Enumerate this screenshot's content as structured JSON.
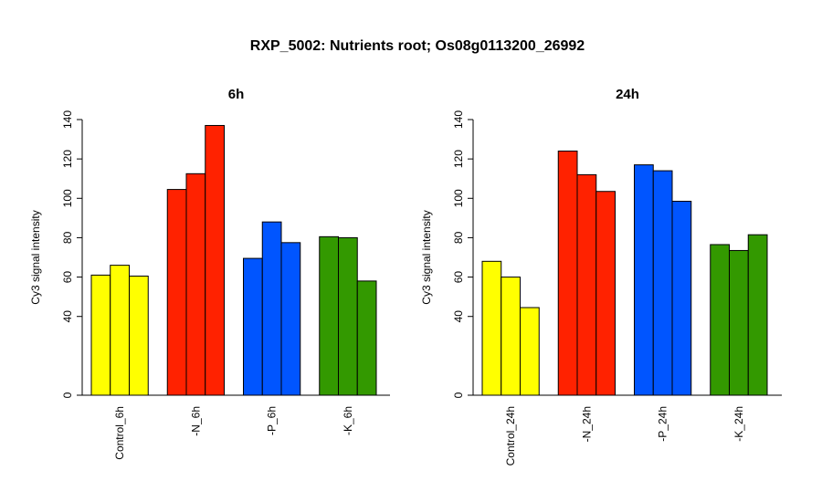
{
  "figure_title": "RXP_5002: Nutrients root; Os08g0113200_26992",
  "chart_data": [
    {
      "type": "bar",
      "title": "6h",
      "ylabel": "Cy3 signal intensity",
      "xlabel": "",
      "ylim": [
        0,
        140
      ],
      "yticks": [
        0,
        40,
        60,
        80,
        100,
        120,
        140
      ],
      "grid": false,
      "categories": [
        "Control_6h",
        "-N_6h",
        "-P_6h",
        "-K_6h"
      ],
      "groups": [
        {
          "category": "Control_6h",
          "color": "#ffff00",
          "values": [
            61,
            66,
            60.5
          ]
        },
        {
          "category": "-N_6h",
          "color": "#ff2200",
          "values": [
            104.5,
            112.5,
            137
          ]
        },
        {
          "category": "-P_6h",
          "color": "#0055ff",
          "values": [
            69.5,
            88,
            77.5
          ]
        },
        {
          "category": "-K_6h",
          "color": "#339900",
          "values": [
            80.5,
            80,
            58
          ]
        }
      ]
    },
    {
      "type": "bar",
      "title": "24h",
      "ylabel": "Cy3 signal intensity",
      "xlabel": "",
      "ylim": [
        0,
        140
      ],
      "yticks": [
        0,
        40,
        60,
        80,
        100,
        120,
        140
      ],
      "grid": false,
      "categories": [
        "Control_24h",
        "-N_24h",
        "-P_24h",
        "-K_24h"
      ],
      "groups": [
        {
          "category": "Control_24h",
          "color": "#ffff00",
          "values": [
            68,
            60,
            44.5
          ]
        },
        {
          "category": "-N_24h",
          "color": "#ff2200",
          "values": [
            124,
            112,
            103.5
          ]
        },
        {
          "category": "-P_24h",
          "color": "#0055ff",
          "values": [
            117,
            114,
            98.5
          ]
        },
        {
          "category": "-K_24h",
          "color": "#339900",
          "values": [
            76.5,
            73.5,
            81.5
          ]
        }
      ]
    }
  ]
}
